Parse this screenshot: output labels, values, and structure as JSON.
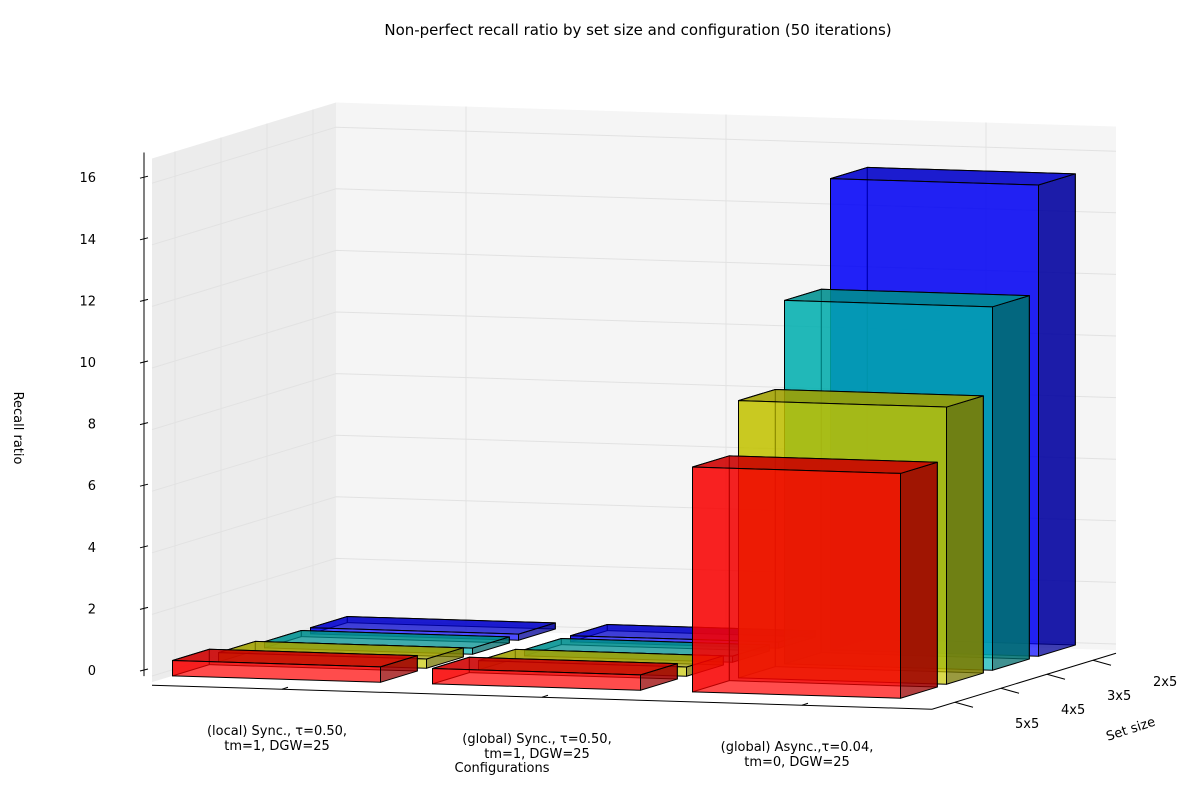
{
  "chart_data": {
    "type": "bar3d",
    "title": "Non-perfect recall ratio by set size and configuration (50 iterations)",
    "xlabel": "Configurations",
    "ylabel": "Set size",
    "zlabel": "Recall ratio",
    "zlim": [
      0,
      16
    ],
    "z_ticks": [
      "0",
      "2",
      "4",
      "6",
      "8",
      "10",
      "12",
      "14",
      "16"
    ],
    "configurations": [
      [
        "(local) Sync., τ=0.50,",
        "tm=1, DGW=25"
      ],
      [
        "(global) Sync., τ=0.50,",
        "tm=1, DGW=25"
      ],
      [
        "(global) Async.,τ=0.04,",
        "tm=0, DGW=25"
      ]
    ],
    "set_sizes": [
      "5x5",
      "4x5",
      "3x5",
      "2x5"
    ],
    "series": [
      {
        "name": "5x5",
        "color": "#ff0000",
        "values": [
          0.5,
          0.5,
          7.3
        ]
      },
      {
        "name": "4x5",
        "color": "#c8c800",
        "values": [
          0.3,
          0.3,
          9.0
        ]
      },
      {
        "name": "3x5",
        "color": "#00b4b4",
        "values": [
          0.2,
          0.2,
          11.8
        ]
      },
      {
        "name": "2x5",
        "color": "#0000ff",
        "values": [
          0.2,
          0.2,
          15.3
        ]
      }
    ],
    "grid": true
  }
}
